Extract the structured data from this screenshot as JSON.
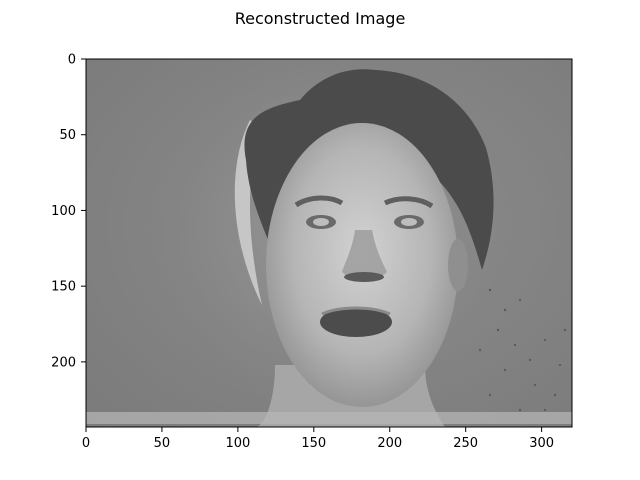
{
  "chart_data": {
    "type": "image",
    "title": "Reconstructed Image",
    "colormap": "gray",
    "image_shape": [
      243,
      320
    ],
    "xlim": [
      0,
      320
    ],
    "ylim": [
      243,
      0
    ],
    "x_ticks": [
      0,
      50,
      100,
      150,
      200,
      250,
      300
    ],
    "y_ticks": [
      0,
      50,
      100,
      150,
      200
    ],
    "x_tick_labels": [
      "0",
      "50",
      "100",
      "150",
      "200",
      "250",
      "300"
    ],
    "y_tick_labels": [
      "0",
      "50",
      "100",
      "150",
      "200"
    ],
    "content": "grayscale reconstructed face"
  }
}
